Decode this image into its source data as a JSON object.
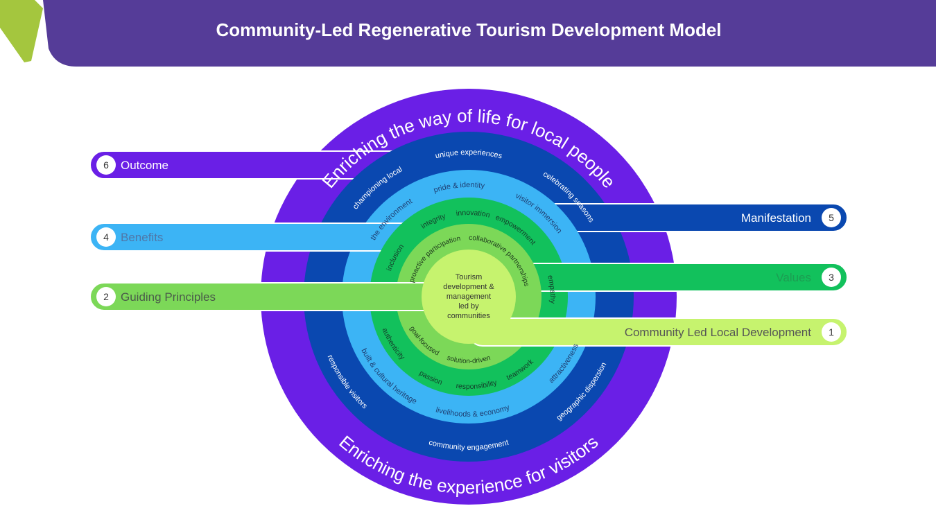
{
  "header": {
    "title": "Community-Led Regenerative Tourism Development Model"
  },
  "outer_ring": {
    "top_text": "Enriching the way of life for local people",
    "bottom_text": "Enriching the experience for visitors"
  },
  "rings": [
    {
      "labels": [
        "unique experiences",
        "celebrating seasons",
        "championing local",
        "geographic dispersion",
        "community engagement",
        "responsible visitors"
      ]
    },
    {
      "labels": [
        "pride & identity",
        "visitor immersion",
        "the environment",
        "attractiveness",
        "livelihoods & economy",
        "built & cultural heritage"
      ]
    },
    {
      "labels": [
        "innovation",
        "integrity",
        "empowerment",
        "inclusion",
        "empathy",
        "teamwork",
        "responsibility",
        "passion",
        "authenticity"
      ]
    },
    {
      "labels": [
        "proactive participation",
        "collaborative partnerships",
        "goal-focused",
        "solution-driven"
      ]
    }
  ],
  "center": {
    "lines": [
      "Tourism",
      "development &",
      "management",
      "led by",
      "communities"
    ]
  },
  "layers": [
    {
      "number": 1,
      "label": "Community Led Local Development"
    },
    {
      "number": 2,
      "label": "Guiding Principles"
    },
    {
      "number": 3,
      "label": "Values"
    },
    {
      "number": 4,
      "label": "Benefits"
    },
    {
      "number": 5,
      "label": "Manifestation"
    },
    {
      "number": 6,
      "label": "Outcome"
    }
  ]
}
